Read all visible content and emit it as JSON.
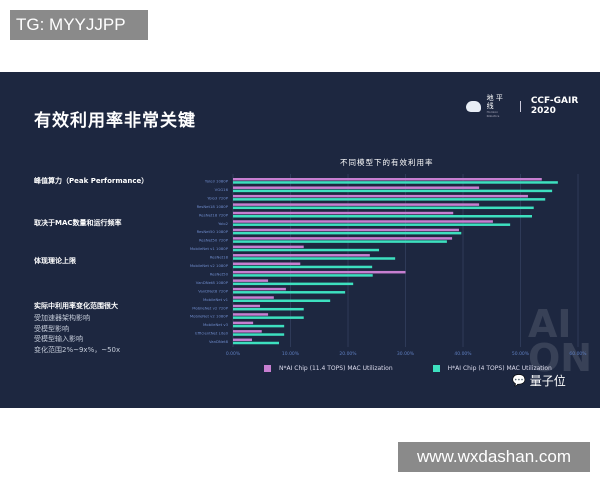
{
  "overlay": {
    "top_tag": "TG: MYYJJPP",
    "bottom_tag": "www.wxdashan.com"
  },
  "slide": {
    "title": "有效利用率非常关键",
    "logo": {
      "brand_cn": "地 平 线",
      "brand_en": "Horizon Robotics",
      "conference": "CCF-GAIR 2020"
    },
    "left_text": {
      "peak": "峰值算力（Peak Performance）",
      "depends": "取决于MAC数量和运行频率",
      "limit": "体现理论上限",
      "actual": "实际中利用率变化范围很大",
      "b1": "受加速器架构影响",
      "b2": "受模型影响",
      "b3": "受模型输入影响",
      "b4": "变化范围2%~9x%，~50x"
    },
    "watermark": "AI ON",
    "source": "量子位",
    "source_icon": "wechat-icon"
  },
  "chart_data": {
    "type": "bar",
    "orientation": "horizontal",
    "title": "不同模型下的有效利用率",
    "categories": [
      "Yolo3 1080P",
      "VGG16",
      "Yolo3 720P",
      "ResNet18 1080P",
      "ResNet18 720P",
      "Yolo2",
      "ResNet50 1080P",
      "ResNet50 720P",
      "MobileNet v1 1080P",
      "ResNet18",
      "MobileNet v2 1080P",
      "ResNet50",
      "VanDNet8 1080P",
      "VanDNet8 720P",
      "MobileNet v1",
      "MobileNet v2 720P",
      "MobileNet v2 1080P",
      "MobileNet v3",
      "EfficientNet Lite0",
      "VanDNet8"
    ],
    "series": [
      {
        "name": "N*AI Chip (11.4 TOPS) MAC Utilization",
        "color": "#c77fd1",
        "values": [
          53.7,
          42.8,
          51.3,
          42.8,
          38.3,
          45.2,
          39.3,
          38.1,
          12.3,
          23.8,
          11.7,
          30.0,
          6.1,
          9.2,
          7.1,
          4.7,
          6.1,
          3.5,
          5.0,
          3.3
        ]
      },
      {
        "name": "H*AI Chip (4 TOPS) MAC Utilization",
        "color": "#3de0bf",
        "values": [
          56.5,
          55.5,
          54.3,
          52.3,
          52.0,
          48.2,
          39.7,
          37.2,
          25.4,
          28.2,
          24.2,
          24.3,
          20.9,
          19.5,
          16.9,
          12.3,
          12.3,
          8.9,
          8.9,
          8.0
        ]
      }
    ],
    "xticks": [
      "0.00%",
      "10.00%",
      "20.00%",
      "30.00%",
      "40.00%",
      "50.00%",
      "60.00%"
    ],
    "xlim": [
      0,
      60
    ],
    "grid": true,
    "legend": "bottom"
  }
}
